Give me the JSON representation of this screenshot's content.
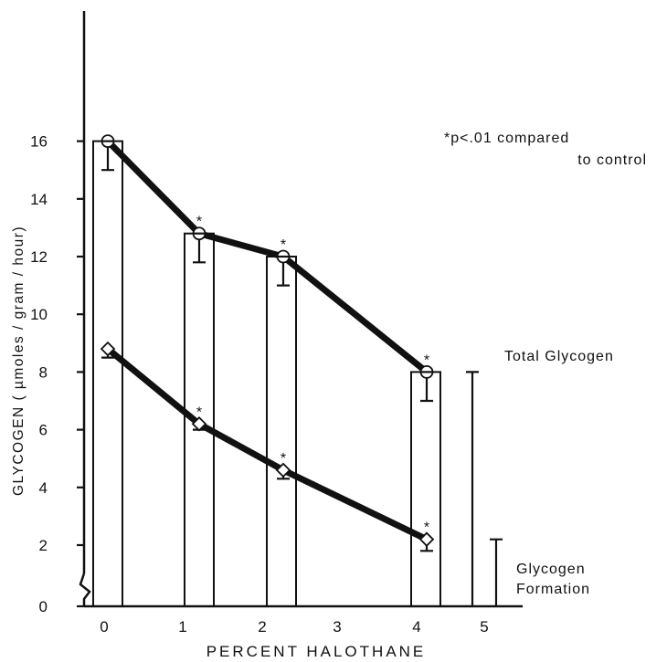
{
  "chart_data": {
    "type": "bar",
    "ylabel": "GLYCOGEN ( µmoles / gram / hour)",
    "xlabel": "PERCENT HALOTHANE",
    "x_ticks": [
      "0",
      "1",
      "2",
      "3",
      "4",
      "5"
    ],
    "y_ticks": [
      "0",
      "2",
      "4",
      "6",
      "8",
      "10",
      "12",
      "14",
      "16"
    ],
    "ylim": [
      0,
      17
    ],
    "annotation_line1": "*p<.01 compared",
    "annotation_line2": "to control",
    "significance_mark": "*",
    "bar_values": [
      16,
      12.8,
      12,
      8
    ],
    "bar_x": [
      0,
      1,
      2,
      4
    ],
    "series": [
      {
        "name": "Total Glycogen",
        "marker": "circle",
        "x": [
          0,
          1,
          2,
          4
        ],
        "values": [
          16,
          12.8,
          12,
          8
        ],
        "error": [
          1,
          1,
          1,
          1
        ],
        "significant": [
          false,
          true,
          true,
          true
        ]
      },
      {
        "name": "Glycogen Formation",
        "marker": "diamond",
        "x": [
          0,
          1,
          2,
          4
        ],
        "values": [
          8.8,
          6.2,
          4.6,
          2.2
        ],
        "error": [
          0.3,
          0.2,
          0.3,
          0.4
        ],
        "significant": [
          false,
          true,
          true,
          true
        ]
      }
    ],
    "legend_total_label": "Total Glycogen",
    "legend_formation_line1": "Glycogen",
    "legend_formation_line2": "Formation",
    "legend_total_value": 8,
    "legend_formation_value": 2.2
  }
}
